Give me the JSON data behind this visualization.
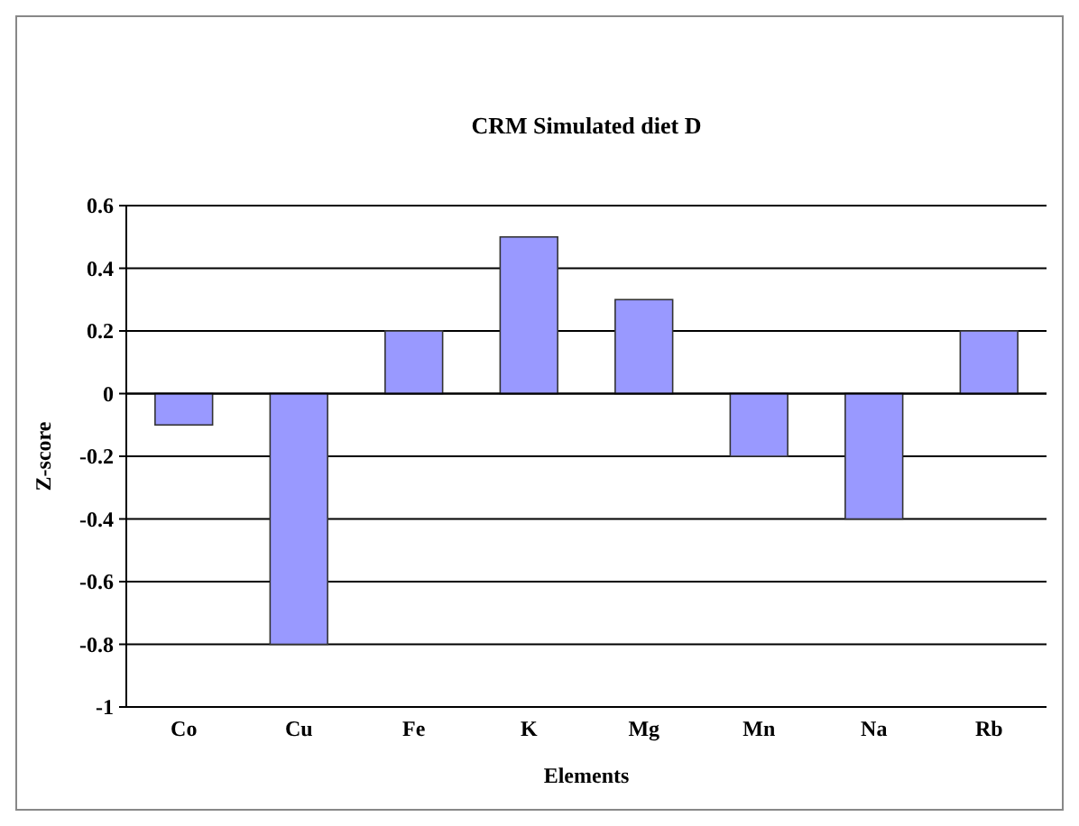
{
  "chart_data": {
    "type": "bar",
    "title": "CRM Simulated diet D",
    "xlabel": "Elements",
    "ylabel": "Z-score",
    "categories": [
      "Co",
      "Cu",
      "Fe",
      "K",
      "Mg",
      "Mn",
      "Na",
      "Rb"
    ],
    "values": [
      -0.1,
      -0.8,
      0.2,
      0.5,
      0.3,
      -0.2,
      -0.4,
      0.2
    ],
    "color": "#9999ff",
    "ylim": [
      -1,
      0.6
    ],
    "yticks": [
      -1,
      -0.8,
      -0.6,
      -0.4,
      -0.2,
      0,
      0.2,
      0.4,
      0.6
    ],
    "grid": "y"
  }
}
